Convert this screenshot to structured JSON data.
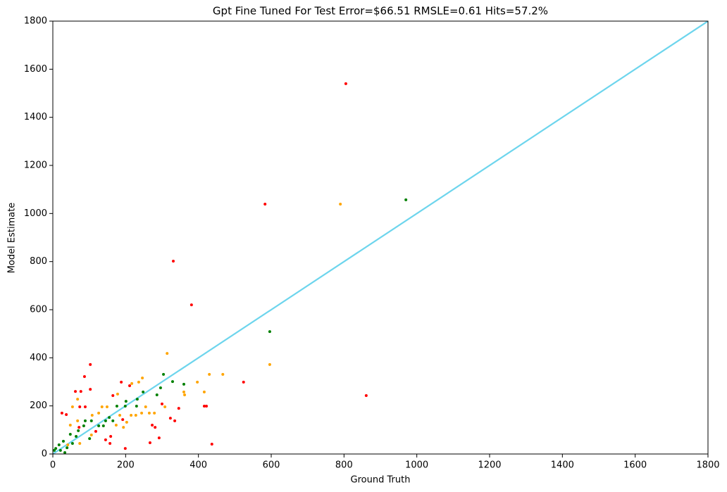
{
  "chart_data": {
    "type": "scatter",
    "title": "Gpt Fine Tuned For Test Error=$66.51 RMSLE=0.61 Hits=57.2%",
    "x_label": "Ground Truth",
    "y_label": "Model Estimate",
    "xlim": [
      0,
      1800
    ],
    "ylim": [
      0,
      1800
    ],
    "xticks": [
      0,
      200,
      400,
      600,
      800,
      1000,
      1200,
      1400,
      1600,
      1800
    ],
    "yticks": [
      0,
      200,
      400,
      600,
      800,
      1000,
      1200,
      1400,
      1600,
      1800
    ],
    "grid": false,
    "reference_line": {
      "color": "#6dd5ed",
      "x": [
        0,
        1800
      ],
      "y": [
        0,
        1800
      ]
    },
    "series": [
      {
        "color": "red",
        "x": [
          805,
          583,
          331,
          381,
          524,
          861,
          437,
          103,
          87,
          62,
          77,
          74,
          89,
          103,
          165,
          188,
          416,
          422,
          346,
          335,
          323,
          267,
          199,
          159,
          157,
          145,
          72,
          37,
          25,
          118,
          300,
          273,
          281,
          292,
          192,
          211
        ],
        "values": [
          1540,
          1039,
          802,
          620,
          299,
          243,
          41,
          372,
          322,
          260,
          260,
          196,
          196,
          269,
          243,
          299,
          199,
          199,
          190,
          138,
          149,
          47,
          23,
          73,
          44,
          59,
          111,
          164,
          170,
          94,
          208,
          120,
          111,
          67,
          143,
          284
        ]
      },
      {
        "color": "orange",
        "x": [
          790,
          596,
          314,
          467,
          430,
          397,
          416,
          360,
          362,
          308,
          246,
          236,
          217,
          255,
          265,
          279,
          244,
          228,
          215,
          184,
          178,
          149,
          135,
          108,
          126,
          68,
          54,
          48,
          68,
          106,
          74,
          203,
          194,
          174,
          41
        ],
        "values": [
          1039,
          372,
          418,
          331,
          331,
          299,
          258,
          258,
          246,
          196,
          316,
          299,
          293,
          196,
          170,
          170,
          170,
          161,
          161,
          161,
          249,
          196,
          196,
          161,
          170,
          228,
          196,
          120,
          138,
          79,
          44,
          132,
          111,
          120,
          38
        ]
      },
      {
        "color": "green",
        "x": [
          970,
          596,
          304,
          329,
          360,
          296,
          248,
          232,
          230,
          199,
          201,
          176,
          286,
          155,
          145,
          106,
          89,
          85,
          126,
          139,
          70,
          48,
          64,
          29,
          17,
          8,
          21,
          39,
          54,
          101,
          165,
          4,
          33
        ],
        "values": [
          1057,
          509,
          331,
          301,
          290,
          275,
          258,
          228,
          199,
          199,
          219,
          199,
          246,
          152,
          138,
          138,
          138,
          117,
          117,
          117,
          97,
          82,
          73,
          53,
          38,
          23,
          15,
          26,
          44,
          64,
          138,
          15,
          6
        ]
      }
    ]
  }
}
